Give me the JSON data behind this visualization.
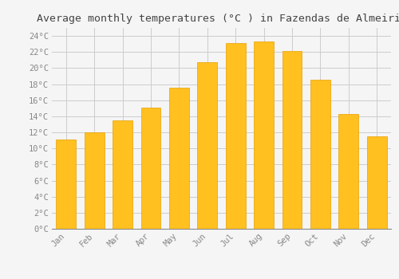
{
  "title": "Average monthly temperatures (°C ) in Fazendas de Almeirim",
  "months": [
    "Jan",
    "Feb",
    "Mar",
    "Apr",
    "May",
    "Jun",
    "Jul",
    "Aug",
    "Sep",
    "Oct",
    "Nov",
    "Dec"
  ],
  "values": [
    11.1,
    12.0,
    13.5,
    15.1,
    17.6,
    20.7,
    23.1,
    23.3,
    22.1,
    18.6,
    14.3,
    11.5
  ],
  "bar_color": "#FFC020",
  "bar_edge_color": "#E8A000",
  "background_color": "#F5F5F5",
  "grid_color": "#CCCCCC",
  "text_color": "#888888",
  "ylim": [
    0,
    25
  ],
  "yticks": [
    0,
    2,
    4,
    6,
    8,
    10,
    12,
    14,
    16,
    18,
    20,
    22,
    24
  ],
  "title_fontsize": 9.5,
  "tick_fontsize": 7.5,
  "bar_width": 0.7
}
